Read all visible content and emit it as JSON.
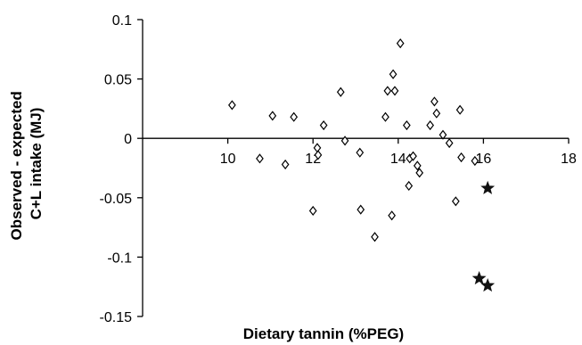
{
  "chart_data": {
    "type": "scatter",
    "xlabel": "Dietary tannin (%PEG)",
    "ylabel_lines": [
      "Observed - expected",
      "C+L intake (MJ)"
    ],
    "xlim": [
      8,
      18
    ],
    "ylim": [
      -0.15,
      0.1
    ],
    "x_ticks": [
      10,
      12,
      14,
      16,
      18
    ],
    "x_tick_labels": [
      "10",
      "12",
      "14",
      "16",
      "18"
    ],
    "y_ticks": [
      0.1,
      0.05,
      0,
      -0.05,
      -0.1,
      -0.15
    ],
    "y_tick_labels": [
      "0.1",
      "0.05",
      "0",
      "-0.05",
      "-0.1",
      "-0.15"
    ],
    "grid": false,
    "series": [
      {
        "marker": "open-diamond",
        "color": "#000000",
        "points": [
          [
            10.1,
            0.028
          ],
          [
            10.75,
            -0.017
          ],
          [
            11.05,
            0.019
          ],
          [
            11.35,
            -0.022
          ],
          [
            11.55,
            0.018
          ],
          [
            12.0,
            -0.061
          ],
          [
            12.1,
            -0.008
          ],
          [
            12.12,
            -0.014
          ],
          [
            12.25,
            0.011
          ],
          [
            12.65,
            0.039
          ],
          [
            12.75,
            -0.002
          ],
          [
            13.1,
            -0.012
          ],
          [
            13.12,
            -0.06
          ],
          [
            13.45,
            -0.083
          ],
          [
            13.7,
            0.018
          ],
          [
            13.75,
            0.04
          ],
          [
            13.85,
            -0.065
          ],
          [
            13.88,
            0.054
          ],
          [
            13.92,
            0.04
          ],
          [
            14.05,
            0.08
          ],
          [
            14.2,
            0.011
          ],
          [
            14.25,
            -0.04
          ],
          [
            14.27,
            -0.017
          ],
          [
            14.35,
            -0.015
          ],
          [
            14.45,
            -0.023
          ],
          [
            14.5,
            -0.029
          ],
          [
            14.75,
            0.011
          ],
          [
            14.85,
            0.031
          ],
          [
            14.9,
            0.021
          ],
          [
            15.05,
            0.003
          ],
          [
            15.2,
            -0.004
          ],
          [
            15.35,
            -0.053
          ],
          [
            15.45,
            0.024
          ],
          [
            15.48,
            -0.016
          ],
          [
            15.8,
            -0.019
          ]
        ]
      },
      {
        "marker": "filled-star",
        "color": "#111111",
        "points": [
          [
            16.1,
            -0.042
          ],
          [
            15.9,
            -0.118
          ],
          [
            16.1,
            -0.124
          ]
        ]
      }
    ]
  }
}
